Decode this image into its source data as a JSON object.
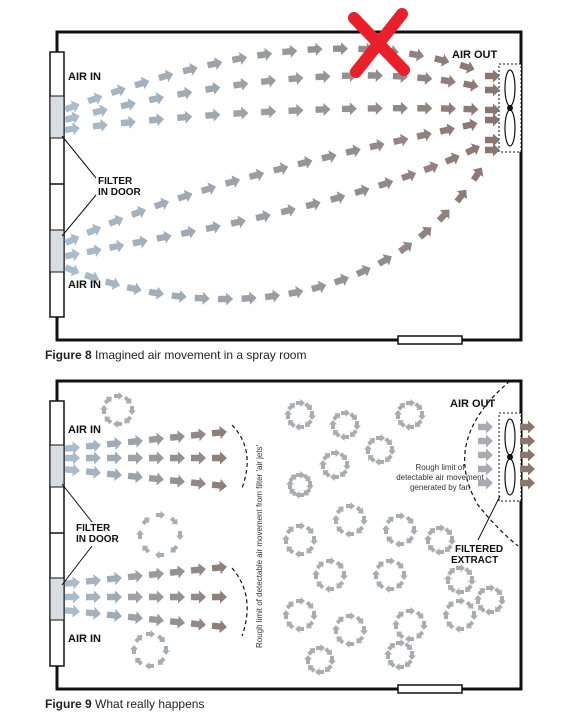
{
  "figure8": {
    "caption_num": "Figure 8",
    "caption_text": " Imagined air movement in a spray room",
    "air_in_top": "AIR IN",
    "air_in_bottom": "AIR IN",
    "air_out": "AIR OUT",
    "filter_line1": "FILTER",
    "filter_line2": "IN DOOR"
  },
  "figure9": {
    "caption_num": "Figure 9",
    "caption_text": " What really happens",
    "air_in_top": "AIR IN",
    "air_in_bottom": "AIR IN",
    "air_out": "AIR OUT",
    "filter_line1": "FILTER",
    "filter_line2": "IN DOOR",
    "filtered_line1": "FILTERED",
    "filtered_line2": "EXTRACT",
    "fan_limit_line1": "Rough limit of",
    "fan_limit_line2": "detectable air movement",
    "fan_limit_line3": "generated by fan",
    "jet_limit": "Rough limit of detectable air movement from filter 'air jets'"
  },
  "colors": {
    "wall": "#111111",
    "arrow_grey": "#a9adb2",
    "arrow_brown": "#8a7670",
    "arrow_blue": "#a9bccb",
    "cross": "#e8202a"
  }
}
